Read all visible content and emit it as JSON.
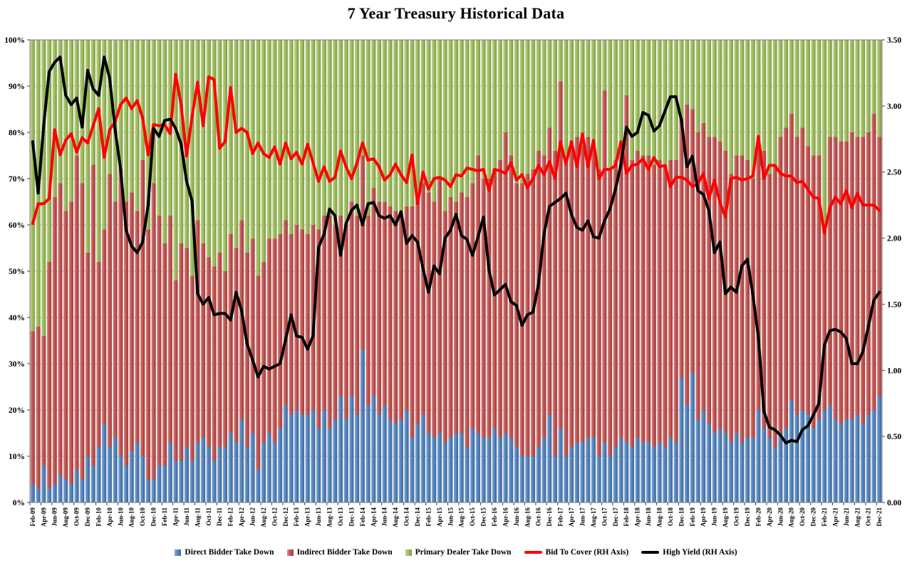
{
  "colors": {
    "direct": "#4F81BD",
    "indirect": "#C0504D",
    "primary": "#9BBB59",
    "bid_to_cover": "#FF0000",
    "high_yield": "#000000",
    "gridline": "#C0C0C0",
    "axis_text": "#000000"
  },
  "legend": {
    "items": [
      {
        "label": "Direct Bidder Take Down",
        "swatch": "box",
        "color": "#4F81BD"
      },
      {
        "label": "Indirect Bidder Take Down",
        "swatch": "box",
        "color": "#C0504D"
      },
      {
        "label": "Primary Dealer Take Down",
        "swatch": "box",
        "color": "#9BBB59"
      },
      {
        "label": "Bid To Cover (RH Axis)",
        "swatch": "line",
        "color": "#FF0000"
      },
      {
        "label": "High Yield (RH Axis)",
        "swatch": "line",
        "color": "#000000"
      }
    ]
  },
  "chart_data": {
    "type": "bar",
    "subtype": "100%-stacked-columns-with-overlay-lines",
    "title": "7 Year Treasury Historical Data",
    "grid": "horizontal",
    "legend_position": "bottom",
    "x_tick_every": 2,
    "left_axis": {
      "min": 0,
      "max": 100,
      "format": "percent",
      "ticks": [
        "100%",
        "90%",
        "80%",
        "70%",
        "60%",
        "50%",
        "40%",
        "30%",
        "20%",
        "10%",
        "0%"
      ]
    },
    "right_axis": {
      "min": 0,
      "max": 3.5,
      "ticks": [
        "3.50",
        "3.00",
        "2.50",
        "2.00",
        "1.50",
        "1.00",
        "0.50",
        "0.00"
      ]
    },
    "categories": [
      "Feb-09",
      "Mar-09",
      "Apr-09",
      "May-09",
      "Jun-09",
      "Jul-09",
      "Aug-09",
      "Sep-09",
      "Oct-09",
      "Nov-09",
      "Dec-09",
      "Jan-10",
      "Feb-10",
      "Mar-10",
      "Apr-10",
      "May-10",
      "Jun-10",
      "Jul-10",
      "Aug-10",
      "Sep-10",
      "Oct-10",
      "Nov-10",
      "Dec-10",
      "Jan-11",
      "Feb-11",
      "Mar-11",
      "Apr-11",
      "May-11",
      "Jun-11",
      "Jul-11",
      "Aug-11",
      "Sep-11",
      "Oct-11",
      "Nov-11",
      "Dec-11",
      "Jan-12",
      "Feb-12",
      "Mar-12",
      "Apr-12",
      "May-12",
      "Jun-12",
      "Jul-12",
      "Aug-12",
      "Sep-12",
      "Oct-12",
      "Nov-12",
      "Dec-12",
      "Jan-13",
      "Feb-13",
      "Mar-13",
      "Apr-13",
      "May-13",
      "Jun-13",
      "Jul-13",
      "Aug-13",
      "Sep-13",
      "Oct-13",
      "Nov-13",
      "Dec-13",
      "Jan-14",
      "Feb-14",
      "Mar-14",
      "Apr-14",
      "May-14",
      "Jun-14",
      "Jul-14",
      "Aug-14",
      "Sep-14",
      "Oct-14",
      "Nov-14",
      "Dec-14",
      "Jan-15",
      "Feb-15",
      "Mar-15",
      "Apr-15",
      "May-15",
      "Jun-15",
      "Jul-15",
      "Aug-15",
      "Sep-15",
      "Oct-15",
      "Nov-15",
      "Dec-15",
      "Jan-16",
      "Feb-16",
      "Mar-16",
      "Apr-16",
      "May-16",
      "Jun-16",
      "Jul-16",
      "Aug-16",
      "Sep-16",
      "Oct-16",
      "Nov-16",
      "Dec-16",
      "Jan-17",
      "Feb-17",
      "Mar-17",
      "Apr-17",
      "May-17",
      "Jun-17",
      "Jul-17",
      "Aug-17",
      "Sep-17",
      "Oct-17",
      "Nov-17",
      "Dec-17",
      "Jan-18",
      "Feb-18",
      "Mar-18",
      "Apr-18",
      "May-18",
      "Jun-18",
      "Jul-18",
      "Aug-18",
      "Sep-18",
      "Oct-18",
      "Nov-18",
      "Dec-18",
      "Jan-19",
      "Feb-19",
      "Mar-19",
      "Apr-19",
      "May-19",
      "Jun-19",
      "Jul-19",
      "Aug-19",
      "Sep-19",
      "Oct-19",
      "Nov-19",
      "Dec-19",
      "Jan-20",
      "Feb-20",
      "Mar-20",
      "Apr-20",
      "May-20",
      "Jun-20",
      "Jul-20",
      "Aug-20",
      "Sep-20",
      "Oct-20",
      "Nov-20",
      "Dec-20",
      "Jan-21",
      "Feb-21",
      "Mar-21",
      "Apr-21",
      "May-21",
      "Jun-21",
      "Jul-21",
      "Aug-21",
      "Sep-21",
      "Oct-21",
      "Nov-21",
      "Dec-21"
    ],
    "series": [
      {
        "name": "Direct Bidder Take Down",
        "type": "bar",
        "axis": "left",
        "unit": "%",
        "values": [
          4,
          3,
          8,
          3,
          4,
          6,
          5,
          4,
          7,
          5,
          10,
          8,
          12,
          17,
          12,
          14,
          10,
          8,
          11,
          13,
          10,
          5,
          5,
          8,
          8,
          13,
          9,
          9,
          12,
          9,
          13,
          14,
          12,
          9,
          12,
          12,
          15,
          13,
          18,
          12,
          15,
          7,
          13,
          15,
          13,
          16,
          21,
          19,
          20,
          19,
          19,
          20,
          16,
          20,
          16,
          18,
          23,
          18,
          23,
          19,
          33,
          21,
          23,
          19,
          21,
          18,
          17,
          18,
          20,
          14,
          17,
          19,
          15,
          14,
          15,
          13,
          14,
          15,
          15,
          12,
          16,
          15,
          14,
          14,
          16,
          14,
          15,
          14,
          12,
          10,
          10,
          10,
          12,
          14,
          19,
          10,
          16,
          10,
          12,
          13,
          13,
          14,
          14,
          10,
          13,
          10,
          12,
          14,
          13,
          12,
          14,
          13,
          13,
          12,
          13,
          12,
          14,
          13,
          27,
          21,
          28,
          18,
          20,
          17,
          15,
          16,
          15,
          13,
          15,
          13,
          14,
          14,
          20,
          16,
          14,
          12,
          15,
          16,
          22,
          19,
          20,
          19,
          16,
          18,
          20,
          21,
          18,
          17,
          18,
          18,
          19,
          17,
          19,
          20,
          23
        ]
      },
      {
        "name": "Indirect Bidder Take Down",
        "type": "bar",
        "axis": "left",
        "unit": "%",
        "values": [
          33,
          35,
          28,
          49,
          62,
          63,
          58,
          61,
          68,
          64,
          44,
          65,
          40,
          42,
          59,
          51,
          62,
          57,
          56,
          50,
          64,
          54,
          64,
          54,
          48,
          49,
          39,
          47,
          43,
          40,
          48,
          42,
          41,
          42,
          42,
          38,
          43,
          42,
          43,
          42,
          42,
          42,
          39,
          42,
          44,
          42,
          40,
          39,
          40,
          40,
          39,
          40,
          43,
          42,
          46,
          42,
          39,
          42,
          42,
          43,
          42,
          41,
          45,
          46,
          44,
          46,
          46,
          44,
          44,
          50,
          49,
          50,
          52,
          51,
          55,
          50,
          52,
          50,
          52,
          54,
          53,
          60,
          56,
          56,
          56,
          60,
          65,
          61,
          57,
          59,
          61,
          62,
          64,
          61,
          62,
          66,
          75,
          63,
          65,
          66,
          64,
          65,
          63,
          62,
          76,
          62,
          62,
          62,
          75,
          62,
          62,
          62,
          62,
          61,
          61,
          61,
          60,
          61,
          56,
          65,
          57,
          62,
          62,
          62,
          64,
          62,
          61,
          58,
          60,
          62,
          60,
          56,
          58,
          60,
          57,
          61,
          64,
          65,
          62,
          60,
          61,
          58,
          59,
          57,
          40,
          58,
          61,
          61,
          60,
          62,
          60,
          62,
          61,
          64,
          56
        ]
      },
      {
        "name": "Primary Dealer Take Down",
        "type": "bar",
        "axis": "left",
        "unit": "%",
        "values": [
          63,
          62,
          64,
          48,
          34,
          31,
          37,
          35,
          25,
          31,
          46,
          27,
          48,
          41,
          29,
          35,
          28,
          35,
          33,
          37,
          26,
          41,
          31,
          38,
          44,
          38,
          52,
          44,
          45,
          51,
          39,
          44,
          47,
          49,
          46,
          50,
          42,
          45,
          39,
          46,
          43,
          51,
          48,
          43,
          43,
          42,
          39,
          42,
          40,
          41,
          42,
          40,
          41,
          38,
          38,
          40,
          38,
          40,
          35,
          38,
          25,
          38,
          32,
          35,
          35,
          36,
          37,
          38,
          36,
          36,
          34,
          31,
          33,
          35,
          30,
          37,
          34,
          35,
          33,
          34,
          31,
          25,
          30,
          30,
          28,
          26,
          20,
          25,
          31,
          31,
          29,
          28,
          24,
          25,
          19,
          24,
          9,
          27,
          23,
          21,
          23,
          21,
          23,
          28,
          11,
          28,
          26,
          24,
          12,
          26,
          24,
          25,
          25,
          27,
          26,
          27,
          26,
          26,
          17,
          14,
          15,
          20,
          18,
          21,
          21,
          22,
          24,
          29,
          25,
          25,
          26,
          30,
          22,
          24,
          29,
          27,
          21,
          19,
          16,
          21,
          19,
          23,
          25,
          25,
          40,
          21,
          21,
          22,
          22,
          20,
          21,
          21,
          20,
          16,
          21
        ]
      },
      {
        "name": "Bid To Cover (RH Axis)",
        "type": "line",
        "axis": "right",
        "values": [
          2.11,
          2.26,
          2.26,
          2.3,
          2.82,
          2.63,
          2.74,
          2.79,
          2.65,
          2.76,
          2.72,
          2.85,
          2.98,
          2.61,
          2.82,
          2.88,
          3.01,
          3.06,
          2.98,
          3.04,
          2.91,
          2.63,
          2.86,
          2.85,
          2.86,
          2.79,
          3.24,
          3.01,
          2.62,
          2.92,
          3.18,
          2.85,
          3.22,
          3.2,
          2.68,
          2.73,
          3.14,
          2.8,
          2.83,
          2.8,
          2.64,
          2.72,
          2.64,
          2.61,
          2.69,
          2.56,
          2.72,
          2.6,
          2.65,
          2.56,
          2.71,
          2.57,
          2.43,
          2.54,
          2.43,
          2.46,
          2.66,
          2.54,
          2.45,
          2.57,
          2.72,
          2.59,
          2.6,
          2.54,
          2.44,
          2.48,
          2.56,
          2.48,
          2.42,
          2.63,
          2.26,
          2.5,
          2.37,
          2.45,
          2.46,
          2.44,
          2.39,
          2.48,
          2.47,
          2.53,
          2.52,
          2.51,
          2.52,
          2.36,
          2.52,
          2.51,
          2.49,
          2.57,
          2.44,
          2.48,
          2.38,
          2.45,
          2.55,
          2.48,
          2.58,
          2.45,
          2.73,
          2.56,
          2.73,
          2.54,
          2.79,
          2.54,
          2.74,
          2.45,
          2.52,
          2.52,
          2.55,
          2.73,
          2.49,
          2.55,
          2.56,
          2.6,
          2.52,
          2.61,
          2.54,
          2.55,
          2.39,
          2.46,
          2.46,
          2.44,
          2.39,
          2.41,
          2.49,
          2.3,
          2.44,
          2.27,
          2.16,
          2.45,
          2.46,
          2.44,
          2.45,
          2.47,
          2.77,
          2.45,
          2.55,
          2.55,
          2.49,
          2.47,
          2.47,
          2.42,
          2.43,
          2.37,
          2.31,
          2.3,
          2.04,
          2.23,
          2.31,
          2.26,
          2.36,
          2.23,
          2.34,
          2.25,
          2.25,
          2.25,
          2.21
        ]
      },
      {
        "name": "High Yield (RH Axis)",
        "type": "line",
        "axis": "right",
        "values": [
          2.73,
          2.34,
          2.85,
          3.26,
          3.33,
          3.37,
          3.08,
          3.01,
          3.06,
          2.84,
          3.27,
          3.13,
          3.08,
          3.37,
          3.21,
          2.82,
          2.52,
          2.06,
          1.94,
          1.89,
          1.97,
          2.25,
          2.83,
          2.77,
          2.89,
          2.9,
          2.83,
          2.71,
          2.43,
          2.28,
          1.58,
          1.5,
          1.55,
          1.42,
          1.43,
          1.43,
          1.38,
          1.59,
          1.45,
          1.2,
          1.08,
          0.95,
          1.03,
          1.01,
          1.03,
          1.05,
          1.23,
          1.42,
          1.26,
          1.25,
          1.16,
          1.26,
          1.93,
          2.03,
          2.22,
          2.17,
          1.87,
          2.11,
          2.21,
          2.25,
          2.1,
          2.26,
          2.27,
          2.17,
          2.15,
          2.17,
          2.1,
          2.2,
          1.96,
          2.02,
          1.97,
          1.77,
          1.59,
          1.79,
          1.73,
          2.0,
          2.06,
          2.18,
          2.02,
          1.99,
          1.87,
          2.01,
          2.16,
          1.76,
          1.57,
          1.61,
          1.65,
          1.52,
          1.49,
          1.34,
          1.42,
          1.44,
          1.65,
          2.03,
          2.24,
          2.27,
          2.3,
          2.34,
          2.18,
          2.08,
          2.06,
          2.13,
          2.01,
          2.0,
          2.13,
          2.22,
          2.37,
          2.56,
          2.84,
          2.77,
          2.8,
          2.95,
          2.93,
          2.81,
          2.85,
          2.96,
          3.07,
          3.07,
          2.89,
          2.54,
          2.62,
          2.36,
          2.33,
          2.21,
          1.89,
          1.97,
          1.58,
          1.63,
          1.59,
          1.79,
          1.84,
          1.57,
          1.25,
          0.69,
          0.57,
          0.55,
          0.51,
          0.45,
          0.47,
          0.46,
          0.55,
          0.58,
          0.66,
          0.75,
          1.19,
          1.3,
          1.31,
          1.29,
          1.24,
          1.05,
          1.05,
          1.14,
          1.33,
          1.53,
          1.59
        ]
      }
    ]
  }
}
